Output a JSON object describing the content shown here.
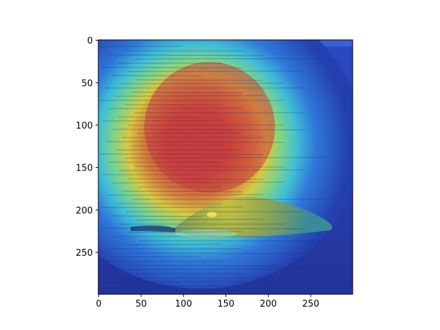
{
  "chart_data": {
    "type": "heatmap",
    "title": "",
    "xlabel": "",
    "ylabel": "",
    "xlim": [
      0,
      299
    ],
    "ylim": [
      299,
      0
    ],
    "x_ticks": [
      0,
      50,
      100,
      150,
      200,
      250
    ],
    "y_ticks": [
      0,
      50,
      100,
      150,
      200,
      250
    ],
    "grid": false,
    "colormap": "jet",
    "overlay": "attention heatmap over photograph of a whale back surfacing in dark blue water",
    "hotspot": {
      "center": [
        130,
        125
      ],
      "extent_x": [
        75,
        185
      ],
      "extent_y": [
        70,
        185
      ]
    },
    "subject_region": {
      "x": [
        95,
        275
      ],
      "y": [
        185,
        235
      ]
    }
  },
  "colors": {
    "water": "#1d2f8a",
    "hot": "#c4302a",
    "warm": "#e8c23a",
    "cool": "#4fd0c8"
  }
}
